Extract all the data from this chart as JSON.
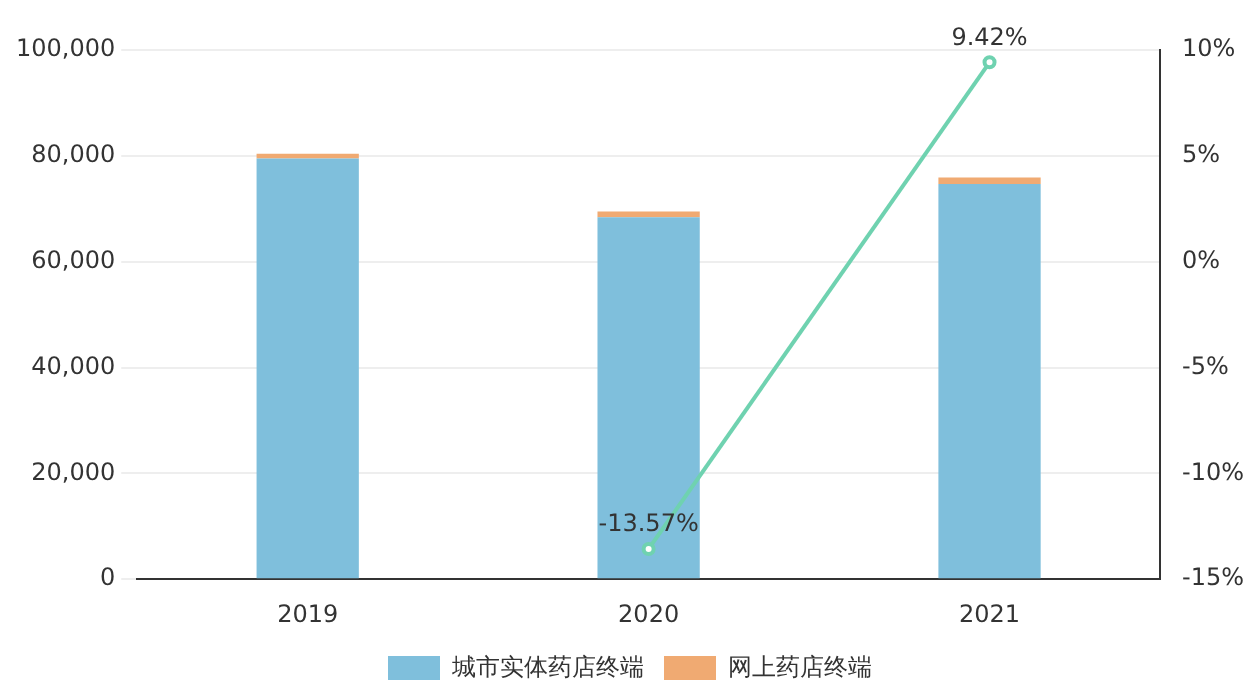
{
  "chart_data": {
    "type": "bar",
    "stacked": true,
    "categories": [
      "2019",
      "2020",
      "2021"
    ],
    "series": [
      {
        "name": "城市实体药店终端",
        "color": "#7fbfdc",
        "values": [
          79500,
          68400,
          74700
        ]
      },
      {
        "name": "网上药店终端",
        "color": "#f0aa72",
        "values": [
          900,
          1100,
          1200
        ]
      },
      {
        "type": "line",
        "axis": "y2",
        "color": "#6fd2b0",
        "marker": "circle",
        "values": [
          null,
          -13.57,
          9.42
        ],
        "value_labels": [
          null,
          "-13.57%",
          "9.42%"
        ]
      }
    ],
    "ylim": [
      0,
      100000
    ],
    "yticks": [
      {
        "value": 0,
        "label": "0"
      },
      {
        "value": 20000,
        "label": "20,000"
      },
      {
        "value": 40000,
        "label": "40,000"
      },
      {
        "value": 60000,
        "label": "60,000"
      },
      {
        "value": 80000,
        "label": "80,000"
      },
      {
        "value": 100000,
        "label": "100,000"
      }
    ],
    "y2lim": [
      -15,
      10
    ],
    "y2ticks": [
      {
        "value": -15,
        "label": "-15%"
      },
      {
        "value": -10,
        "label": "-10%"
      },
      {
        "value": -5,
        "label": "-5%"
      },
      {
        "value": 0,
        "label": "0%"
      },
      {
        "value": 5,
        "label": "5%"
      },
      {
        "value": 10,
        "label": "10%"
      }
    ],
    "grid": "y",
    "legend": "bottom"
  }
}
